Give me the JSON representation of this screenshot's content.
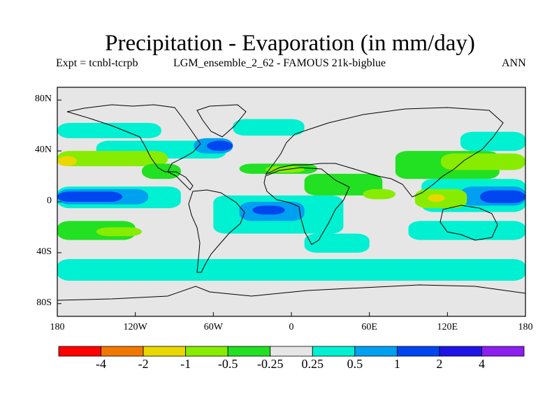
{
  "chart_data": {
    "type": "heatmap",
    "title": "Precipitation - Evaporation (in mm/day)",
    "subtitle_left": "Expt = tcnbl-tcrpb",
    "subtitle_center": "LGM_ensemble_2_62 - FAMOUS 21k-bigblue",
    "subtitle_right": "ANN",
    "x_ticks": [
      "180",
      "120W",
      "60W",
      "0",
      "60E",
      "120E",
      "180"
    ],
    "y_ticks": [
      "80N",
      "40N",
      "0",
      "40S",
      "80S"
    ],
    "xlim": [
      -180,
      180
    ],
    "ylim": [
      -90,
      90
    ],
    "colorbar": {
      "labels": [
        "-4",
        "-2",
        "-1",
        "-0.5",
        "-0.25",
        "0.25",
        "0.5",
        "1",
        "2",
        "4"
      ],
      "colors": [
        "#ff0000",
        "#f07800",
        "#e8d800",
        "#88ec00",
        "#22e022",
        "#e6e6e6",
        "#00f0d2",
        "#00a0f0",
        "#0046f0",
        "#1e14e6",
        "#8c1ef0"
      ]
    },
    "regions": [
      {
        "level": 6,
        "lon": [
          -180,
          -100
        ],
        "lat": [
          50,
          62
        ]
      },
      {
        "level": 6,
        "lon": [
          -150,
          -50
        ],
        "lat": [
          34,
          48
        ]
      },
      {
        "level": 7,
        "lon": [
          -75,
          -45
        ],
        "lat": [
          38,
          50
        ]
      },
      {
        "level": 8,
        "lon": [
          -65,
          -45
        ],
        "lat": [
          40,
          48
        ]
      },
      {
        "level": 6,
        "lon": [
          -45,
          10
        ],
        "lat": [
          52,
          65
        ]
      },
      {
        "level": 6,
        "lon": [
          130,
          180
        ],
        "lat": [
          40,
          55
        ]
      },
      {
        "level": 6,
        "lon": [
          -180,
          -85
        ],
        "lat": [
          -5,
          12
        ]
      },
      {
        "level": 7,
        "lon": [
          -180,
          -110
        ],
        "lat": [
          -2,
          10
        ]
      },
      {
        "level": 8,
        "lon": [
          -180,
          -130
        ],
        "lat": [
          0,
          8
        ]
      },
      {
        "level": 6,
        "lon": [
          -60,
          40
        ],
        "lat": [
          -25,
          5
        ]
      },
      {
        "level": 7,
        "lon": [
          -40,
          10
        ],
        "lat": [
          -15,
          0
        ]
      },
      {
        "level": 8,
        "lon": [
          -30,
          -5
        ],
        "lat": [
          -10,
          -3
        ]
      },
      {
        "level": 6,
        "lon": [
          -180,
          180
        ],
        "lat": [
          -62,
          -45
        ]
      },
      {
        "level": 6,
        "lon": [
          10,
          60
        ],
        "lat": [
          -40,
          -25
        ]
      },
      {
        "level": 6,
        "lon": [
          100,
          180
        ],
        "lat": [
          -8,
          18
        ]
      },
      {
        "level": 7,
        "lon": [
          130,
          180
        ],
        "lat": [
          -3,
          12
        ]
      },
      {
        "level": 8,
        "lon": [
          145,
          180
        ],
        "lat": [
          -1,
          9
        ]
      },
      {
        "level": 6,
        "lon": [
          90,
          180
        ],
        "lat": [
          -30,
          -15
        ]
      },
      {
        "level": 3,
        "lon": [
          -180,
          -95
        ],
        "lat": [
          28,
          40
        ]
      },
      {
        "level": 2,
        "lon": [
          -180,
          -165
        ],
        "lat": [
          28,
          36
        ]
      },
      {
        "level": 4,
        "lon": [
          -180,
          -120
        ],
        "lat": [
          -30,
          -15
        ]
      },
      {
        "level": 3,
        "lon": [
          -150,
          -115
        ],
        "lat": [
          -27,
          -20
        ]
      },
      {
        "level": 4,
        "lon": [
          -40,
          20
        ],
        "lat": [
          22,
          30
        ]
      },
      {
        "level": 3,
        "lon": [
          -20,
          10
        ],
        "lat": [
          23,
          28
        ]
      },
      {
        "level": 4,
        "lon": [
          10,
          70
        ],
        "lat": [
          5,
          22
        ]
      },
      {
        "level": 3,
        "lon": [
          55,
          80
        ],
        "lat": [
          2,
          10
        ]
      },
      {
        "level": 4,
        "lon": [
          80,
          160
        ],
        "lat": [
          18,
          40
        ]
      },
      {
        "level": 3,
        "lon": [
          115,
          180
        ],
        "lat": [
          25,
          38
        ]
      },
      {
        "level": 3,
        "lon": [
          95,
          135
        ],
        "lat": [
          -5,
          10
        ]
      },
      {
        "level": 2,
        "lon": [
          105,
          118
        ],
        "lat": [
          0,
          6
        ]
      },
      {
        "level": 4,
        "lon": [
          -115,
          -85
        ],
        "lat": [
          18,
          30
        ]
      }
    ]
  }
}
